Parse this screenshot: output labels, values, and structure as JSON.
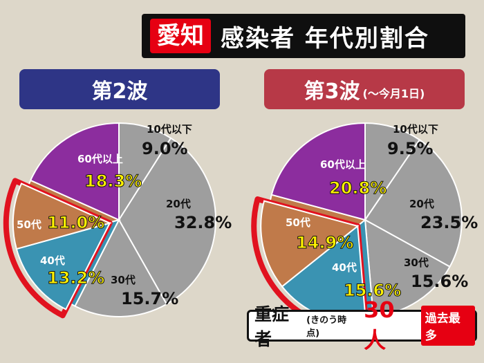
{
  "title": {
    "prefecture": "愛知",
    "main": "感染者 年代別割合"
  },
  "wave2": {
    "header": "第2波"
  },
  "wave3": {
    "header": "第3波",
    "header_sub": "(～今月1日)"
  },
  "severe": {
    "label": "重症者",
    "sub": "(きのう時点)",
    "value": "30人",
    "badge": "過去最多"
  },
  "colors": {
    "gray": "#9e9e9e",
    "purple": "#8c2d9e",
    "brown": "#c07a4a",
    "teal": "#3a93b2",
    "highlight": "#e1121f",
    "title_red": "#e60012"
  },
  "chart_data": [
    {
      "type": "pie",
      "title": "第2波",
      "start": "top, clockwise",
      "slices": [
        {
          "label": "10代以下",
          "value": 9.0,
          "value_label": "9.0%",
          "color": "gray"
        },
        {
          "label": "20代",
          "value": 32.8,
          "value_label": "32.8%",
          "color": "gray"
        },
        {
          "label": "30代",
          "value": 15.7,
          "value_label": "15.7%",
          "color": "gray"
        },
        {
          "label": "40代",
          "value": 13.2,
          "value_label": "13.2%",
          "color": "teal",
          "highlighted": true
        },
        {
          "label": "50代",
          "value": 11.0,
          "value_label": "11.0%",
          "color": "brown",
          "highlighted": true
        },
        {
          "label": "60代以上",
          "value": 18.3,
          "value_label": "18.3%",
          "color": "purple"
        }
      ]
    },
    {
      "type": "pie",
      "title": "第3波",
      "start": "top, clockwise",
      "slices": [
        {
          "label": "10代以下",
          "value": 9.5,
          "value_label": "9.5%",
          "color": "gray"
        },
        {
          "label": "20代",
          "value": 23.5,
          "value_label": "23.5%",
          "color": "gray"
        },
        {
          "label": "30代",
          "value": 15.6,
          "value_label": "15.6%",
          "color": "gray"
        },
        {
          "label": "40代",
          "value": 15.6,
          "value_label": "15.6%",
          "color": "teal",
          "highlighted": true
        },
        {
          "label": "50代",
          "value": 14.9,
          "value_label": "14.9%",
          "color": "brown",
          "highlighted": true
        },
        {
          "label": "60代以上",
          "value": 20.8,
          "value_label": "20.8%",
          "color": "purple"
        }
      ]
    }
  ]
}
